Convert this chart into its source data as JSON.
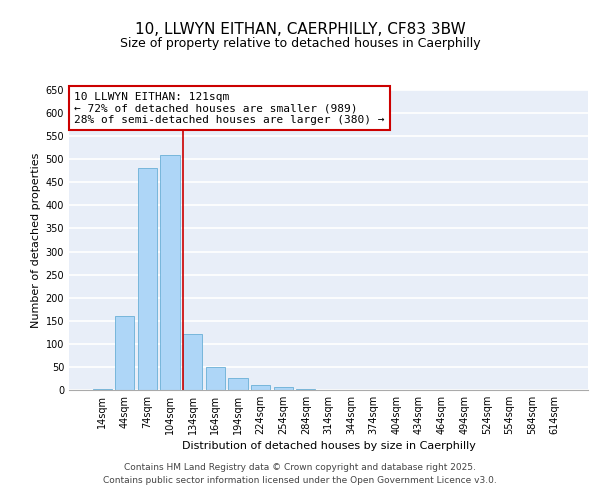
{
  "title": "10, LLWYN EITHAN, CAERPHILLY, CF83 3BW",
  "subtitle": "Size of property relative to detached houses in Caerphilly",
  "xlabel": "Distribution of detached houses by size in Caerphilly",
  "ylabel": "Number of detached properties",
  "categories": [
    "14sqm",
    "44sqm",
    "74sqm",
    "104sqm",
    "134sqm",
    "164sqm",
    "194sqm",
    "224sqm",
    "254sqm",
    "284sqm",
    "314sqm",
    "344sqm",
    "374sqm",
    "404sqm",
    "434sqm",
    "464sqm",
    "494sqm",
    "524sqm",
    "554sqm",
    "584sqm",
    "614sqm"
  ],
  "values": [
    3,
    160,
    480,
    510,
    122,
    50,
    25,
    10,
    7,
    2,
    0,
    0,
    0,
    0,
    0,
    0,
    0,
    0,
    0,
    0,
    0
  ],
  "bar_color": "#aed6f7",
  "bar_edge_color": "#6aafd6",
  "background_color": "#e8eef8",
  "grid_color": "#ffffff",
  "annotation_text": "10 LLWYN EITHAN: 121sqm\n← 72% of detached houses are smaller (989)\n28% of semi-detached houses are larger (380) →",
  "annotation_box_color": "#ffffff",
  "annotation_box_edge_color": "#cc0000",
  "marker_line_color": "#cc0000",
  "ylim": [
    0,
    650
  ],
  "yticks": [
    0,
    50,
    100,
    150,
    200,
    250,
    300,
    350,
    400,
    450,
    500,
    550,
    600,
    650
  ],
  "footer_line1": "Contains HM Land Registry data © Crown copyright and database right 2025.",
  "footer_line2": "Contains public sector information licensed under the Open Government Licence v3.0.",
  "title_fontsize": 11,
  "subtitle_fontsize": 9,
  "axis_label_fontsize": 8,
  "tick_fontsize": 7,
  "annotation_fontsize": 8,
  "footer_fontsize": 6.5
}
